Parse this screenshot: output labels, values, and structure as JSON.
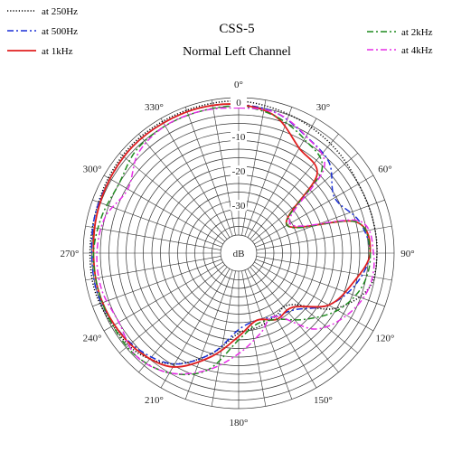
{
  "chart_data": {
    "type": "polar-line",
    "title": "CSS-5",
    "subtitle": "Normal Left Channel",
    "radial_unit": "dB",
    "radial_range": [
      -40,
      0
    ],
    "radial_ticks": [
      0,
      -10,
      -20,
      -30
    ],
    "radial_tick_labels": [
      "0",
      "-10",
      "-20",
      "-30"
    ],
    "angle_ticks": [
      0,
      30,
      60,
      90,
      120,
      150,
      180,
      210,
      240,
      270,
      300,
      330
    ],
    "angle_tick_labels": [
      "0°",
      "30°",
      "60°",
      "90°",
      "120°",
      "150°",
      "180°",
      "210°",
      "240°",
      "270°",
      "300°",
      "330°"
    ],
    "grid": true,
    "legend_placement": "top-left and top-right",
    "series": [
      {
        "name": "at 250Hz",
        "color": "#000000",
        "style": "dotted",
        "points": [
          [
            0,
            -1
          ],
          [
            15,
            -2
          ],
          [
            30,
            -3
          ],
          [
            45,
            -4
          ],
          [
            60,
            -5
          ],
          [
            75,
            -5
          ],
          [
            90,
            -5
          ],
          [
            105,
            -6
          ],
          [
            120,
            -13
          ],
          [
            135,
            -24
          ],
          [
            150,
            -24
          ],
          [
            165,
            -23
          ],
          [
            180,
            -22
          ],
          [
            195,
            -15
          ],
          [
            210,
            -8
          ],
          [
            225,
            -4
          ],
          [
            240,
            -3
          ],
          [
            255,
            -2
          ],
          [
            270,
            -2
          ],
          [
            285,
            -2
          ],
          [
            300,
            -1.5
          ],
          [
            315,
            -1
          ],
          [
            330,
            -1
          ],
          [
            345,
            -1
          ]
        ]
      },
      {
        "name": "at 500Hz",
        "color": "#1a2fd6",
        "style": "dashdot",
        "points": [
          [
            0,
            -2
          ],
          [
            15,
            -3
          ],
          [
            30,
            -6
          ],
          [
            45,
            -8
          ],
          [
            60,
            -13
          ],
          [
            75,
            -9
          ],
          [
            90,
            -7
          ],
          [
            105,
            -10
          ],
          [
            120,
            -15
          ],
          [
            135,
            -22
          ],
          [
            150,
            -24
          ],
          [
            165,
            -25
          ],
          [
            180,
            -23
          ],
          [
            195,
            -15
          ],
          [
            210,
            -8
          ],
          [
            225,
            -5
          ],
          [
            240,
            -3.5
          ],
          [
            255,
            -2.5
          ],
          [
            270,
            -2.5
          ],
          [
            285,
            -2
          ],
          [
            300,
            -2
          ],
          [
            315,
            -1.5
          ],
          [
            330,
            -1.5
          ],
          [
            345,
            -1.5
          ]
        ]
      },
      {
        "name": "at 1kHz",
        "color": "#e02020",
        "style": "solid",
        "points": [
          [
            0,
            -2
          ],
          [
            15,
            -4
          ],
          [
            30,
            -10
          ],
          [
            45,
            -13
          ],
          [
            60,
            -29
          ],
          [
            75,
            -10
          ],
          [
            90,
            -7
          ],
          [
            105,
            -11
          ],
          [
            120,
            -15
          ],
          [
            135,
            -23
          ],
          [
            150,
            -23
          ],
          [
            165,
            -25
          ],
          [
            180,
            -21
          ],
          [
            195,
            -14
          ],
          [
            210,
            -7
          ],
          [
            225,
            -4.5
          ],
          [
            240,
            -3.5
          ],
          [
            255,
            -3
          ],
          [
            270,
            -3
          ],
          [
            285,
            -2.5
          ],
          [
            300,
            -2
          ],
          [
            315,
            -1.5
          ],
          [
            330,
            -1.5
          ],
          [
            345,
            -1.5
          ]
        ]
      },
      {
        "name": "at 2kHz",
        "color": "#1f8a1f",
        "style": "dashdot",
        "points": [
          [
            0,
            -2.5
          ],
          [
            15,
            -4
          ],
          [
            30,
            -7
          ],
          [
            45,
            -11
          ],
          [
            60,
            -29
          ],
          [
            75,
            -10
          ],
          [
            90,
            -7
          ],
          [
            105,
            -8
          ],
          [
            120,
            -12
          ],
          [
            135,
            -18
          ],
          [
            150,
            -23
          ],
          [
            165,
            -24
          ],
          [
            180,
            -20
          ],
          [
            195,
            -10
          ],
          [
            210,
            -5
          ],
          [
            225,
            -3
          ],
          [
            240,
            -3
          ],
          [
            255,
            -3
          ],
          [
            270,
            -3
          ],
          [
            285,
            -4
          ],
          [
            300,
            -5
          ],
          [
            315,
            -3
          ],
          [
            330,
            -2.5
          ],
          [
            345,
            -2.5
          ]
        ]
      },
      {
        "name": "at 4kHz",
        "color": "#e62ee6",
        "style": "dashdot",
        "points": [
          [
            0,
            -3
          ],
          [
            15,
            -3
          ],
          [
            30,
            -6
          ],
          [
            45,
            -10
          ],
          [
            60,
            -28
          ],
          [
            75,
            -9
          ],
          [
            90,
            -6
          ],
          [
            105,
            -6
          ],
          [
            120,
            -9
          ],
          [
            135,
            -14
          ],
          [
            150,
            -24
          ],
          [
            165,
            -21
          ],
          [
            180,
            -16
          ],
          [
            195,
            -10
          ],
          [
            210,
            -5
          ],
          [
            225,
            -3
          ],
          [
            240,
            -5
          ],
          [
            255,
            -4
          ],
          [
            270,
            -4
          ],
          [
            285,
            -5
          ],
          [
            300,
            -8
          ],
          [
            315,
            -4
          ],
          [
            330,
            -2.5
          ],
          [
            345,
            -2.5
          ]
        ]
      }
    ]
  }
}
